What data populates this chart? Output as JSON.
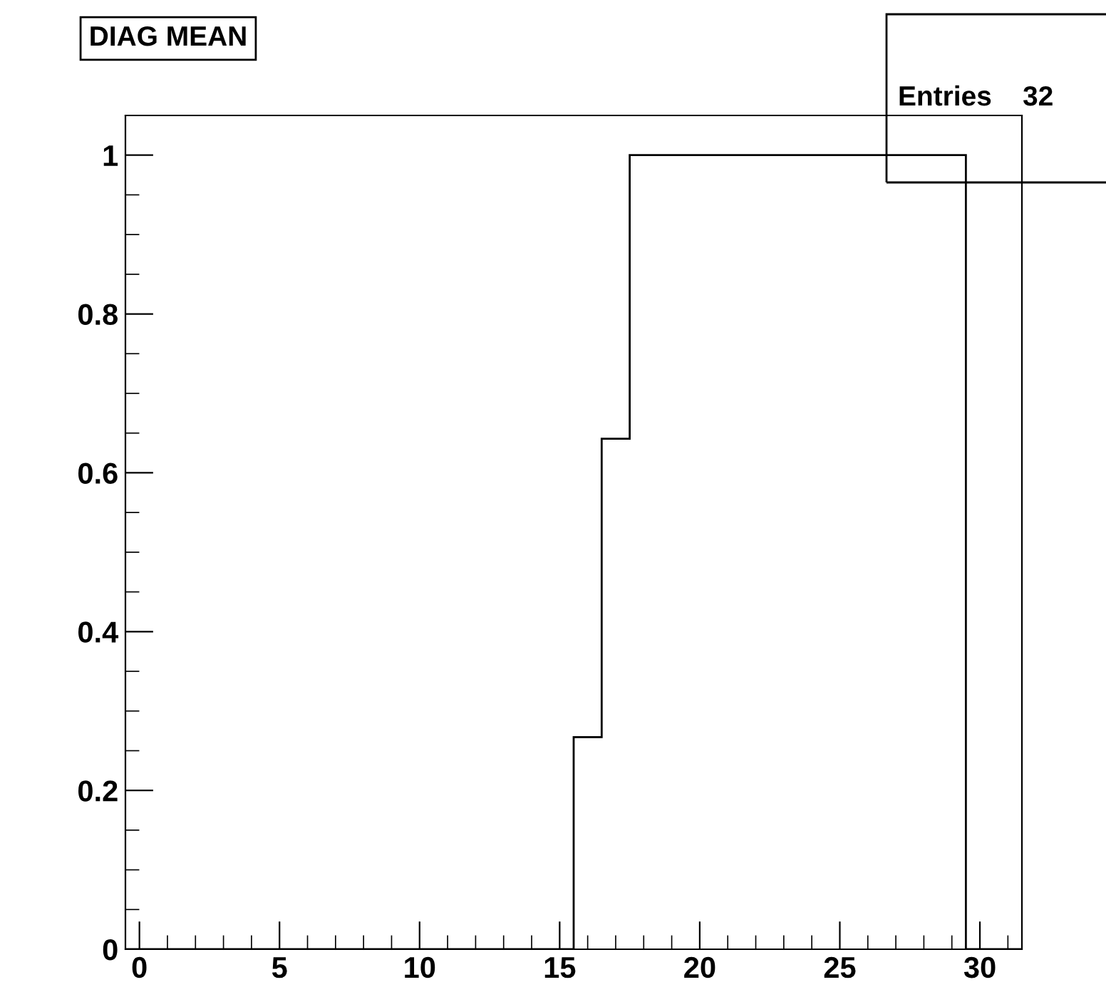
{
  "chart_data": {
    "type": "histogram",
    "title": "DIAG MEAN",
    "annotations": [
      "Entries    32"
    ],
    "bins": [
      -0.5,
      0.5,
      1.5,
      2.5,
      3.5,
      4.5,
      5.5,
      6.5,
      7.5,
      8.5,
      9.5,
      10.5,
      11.5,
      12.5,
      13.5,
      14.5,
      15.5,
      16.5,
      17.5,
      18.5,
      19.5,
      20.5,
      21.5,
      22.5,
      23.5,
      24.5,
      25.5,
      26.5,
      27.5,
      28.5,
      29.5,
      30.5,
      31.5
    ],
    "values": [
      0,
      0,
      0,
      0,
      0,
      0,
      0,
      0,
      0,
      0,
      0,
      0,
      0,
      0,
      0,
      0,
      0.267,
      0.643,
      1,
      1,
      1,
      1,
      1,
      1,
      1,
      1,
      1,
      1,
      1,
      1,
      0,
      0
    ],
    "color": "#000000",
    "xlim": [
      -0.5,
      31.5
    ],
    "ylim": [
      0,
      1.05
    ],
    "xticks": [
      0,
      5,
      10,
      15,
      20,
      25,
      30
    ],
    "yticks": [
      0,
      0.2,
      0.4,
      0.6,
      0.8,
      1
    ],
    "grid": false,
    "legend": false
  }
}
